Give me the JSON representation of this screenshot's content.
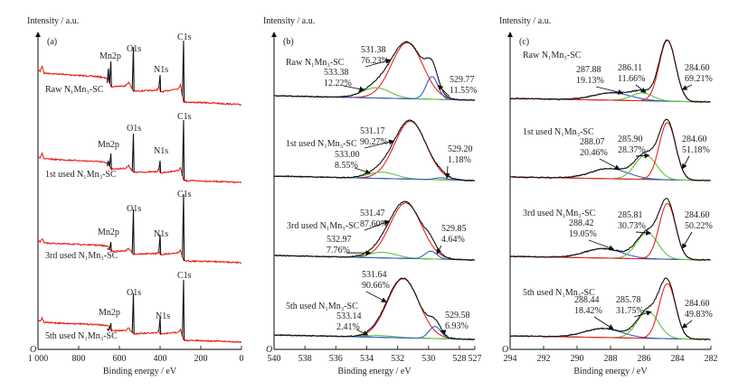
{
  "chart_data": [
    {
      "type": "line",
      "panel_label": "(a)",
      "ylabel": "Intensity / a.u.",
      "xlabel": "Binding energy / eV",
      "origin_label": "O",
      "xlim": [
        1000,
        0
      ],
      "x_ticks": [
        1000,
        800,
        600,
        400,
        200,
        0
      ],
      "x_tick_labels": [
        "1 000",
        "800",
        "600",
        "400",
        "200",
        "0"
      ],
      "colors": {
        "spectrum": "#e8231e",
        "peaks": "#111111"
      },
      "series": [
        {
          "name": "Raw N₁Mn₃-SC",
          "peaks": [
            {
              "label": "Mn2p",
              "be": 642
            },
            {
              "label": "O1s",
              "be": 531
            },
            {
              "label": "N1s",
              "be": 400
            },
            {
              "label": "C1s",
              "be": 284.6
            }
          ]
        },
        {
          "name": "1st used N₁Mn₃-SC",
          "peaks": [
            {
              "label": "Mn2p",
              "be": 642
            },
            {
              "label": "O1s",
              "be": 531
            },
            {
              "label": "N1s",
              "be": 400
            },
            {
              "label": "C1s",
              "be": 284.6
            }
          ]
        },
        {
          "name": "3rd used N₁Mn₃-SC",
          "peaks": [
            {
              "label": "Mn2p",
              "be": 642
            },
            {
              "label": "O1s",
              "be": 531
            },
            {
              "label": "N1s",
              "be": 400
            },
            {
              "label": "C1s",
              "be": 284.6
            }
          ]
        },
        {
          "name": "5th used N₁Mn₃-SC",
          "peaks": [
            {
              "label": "Mn2p",
              "be": 642
            },
            {
              "label": "O1s",
              "be": 531
            },
            {
              "label": "N1s",
              "be": 400
            },
            {
              "label": "C1s",
              "be": 284.6
            }
          ]
        }
      ]
    },
    {
      "type": "line",
      "panel_label": "(b)",
      "ylabel": "Intensity / a.u.",
      "xlabel": "Binding energy / eV",
      "origin_label": "O",
      "xlim": [
        540,
        527
      ],
      "x_ticks": [
        540,
        538,
        536,
        534,
        532,
        530,
        528,
        527
      ],
      "x_tick_labels": [
        "540",
        "538",
        "536",
        "534",
        "532",
        "530",
        "528",
        "527"
      ],
      "colors": {
        "envelope": "#111111",
        "background": "#333333"
      },
      "series": [
        {
          "name": "Raw N₁Mn₃-SC",
          "components": [
            {
              "position": "531.38",
              "percent": "76.23%",
              "color": "#e8231e"
            },
            {
              "position": "533.38",
              "percent": "12.22%",
              "color": "#5cc43a"
            },
            {
              "position": "529.77",
              "percent": "11.55%",
              "color": "#2f5fc4"
            }
          ]
        },
        {
          "name": "1st used N₁Mn₃-SC",
          "components": [
            {
              "position": "531.17",
              "percent": "90.27%",
              "color": "#e8231e"
            },
            {
              "position": "533.00",
              "percent": "8.55%",
              "color": "#5cc43a"
            },
            {
              "position": "529.20",
              "percent": "1.18%",
              "color": "#2f5fc4"
            }
          ]
        },
        {
          "name": "3rd used N₁Mn₃-SC",
          "components": [
            {
              "position": "531.47",
              "percent": "87.60%",
              "color": "#e8231e"
            },
            {
              "position": "532.97",
              "percent": "7.76%",
              "color": "#5cc43a"
            },
            {
              "position": "529.85",
              "percent": "4.64%",
              "color": "#2f5fc4"
            }
          ]
        },
        {
          "name": "5th used N₁Mn₃-SC",
          "components": [
            {
              "position": "531.64",
              "percent": "90.66%",
              "color": "#e8231e"
            },
            {
              "position": "533.14",
              "percent": "2.41%",
              "color": "#5cc43a"
            },
            {
              "position": "529.58",
              "percent": "6.93%",
              "color": "#2f5fc4"
            }
          ]
        }
      ]
    },
    {
      "type": "line",
      "panel_label": "(c)",
      "ylabel": "Intensity / a.u.",
      "xlabel": "Binding energy / eV",
      "origin_label": "O",
      "xlim": [
        294,
        282
      ],
      "x_ticks": [
        294,
        292,
        290,
        288,
        286,
        284,
        282
      ],
      "x_tick_labels": [
        "294",
        "292",
        "290",
        "288",
        "286",
        "284",
        "282"
      ],
      "colors": {
        "envelope": "#111111",
        "background": "#333333"
      },
      "series": [
        {
          "name": "Raw N₁Mn₃-SC",
          "components": [
            {
              "position": "287.88",
              "percent": "19.13%",
              "color": "#2f5fc4"
            },
            {
              "position": "286.11",
              "percent": "11.66%",
              "color": "#5cc43a"
            },
            {
              "position": "284.60",
              "percent": "69.21%",
              "color": "#e8231e"
            }
          ]
        },
        {
          "name": "1st used N₁Mn₃-SC",
          "components": [
            {
              "position": "288.07",
              "percent": "20.46%",
              "color": "#2f5fc4"
            },
            {
              "position": "285.90",
              "percent": "28.37%",
              "color": "#5cc43a"
            },
            {
              "position": "284.60",
              "percent": "51.18%",
              "color": "#e8231e"
            }
          ]
        },
        {
          "name": "3rd used N₁Mn₃-SC",
          "components": [
            {
              "position": "288.42",
              "percent": "19.05%",
              "color": "#2f5fc4"
            },
            {
              "position": "285.81",
              "percent": "30.73%",
              "color": "#5cc43a"
            },
            {
              "position": "284.60",
              "percent": "50.22%",
              "color": "#e8231e"
            }
          ]
        },
        {
          "name": "5th used N₁Mn₃-SC",
          "components": [
            {
              "position": "288.44",
              "percent": "18.42%",
              "color": "#2f5fc4"
            },
            {
              "position": "285.78",
              "percent": "31.75%",
              "color": "#5cc43a"
            },
            {
              "position": "284.60",
              "percent": "49.83%",
              "color": "#e8231e"
            }
          ]
        }
      ]
    }
  ]
}
